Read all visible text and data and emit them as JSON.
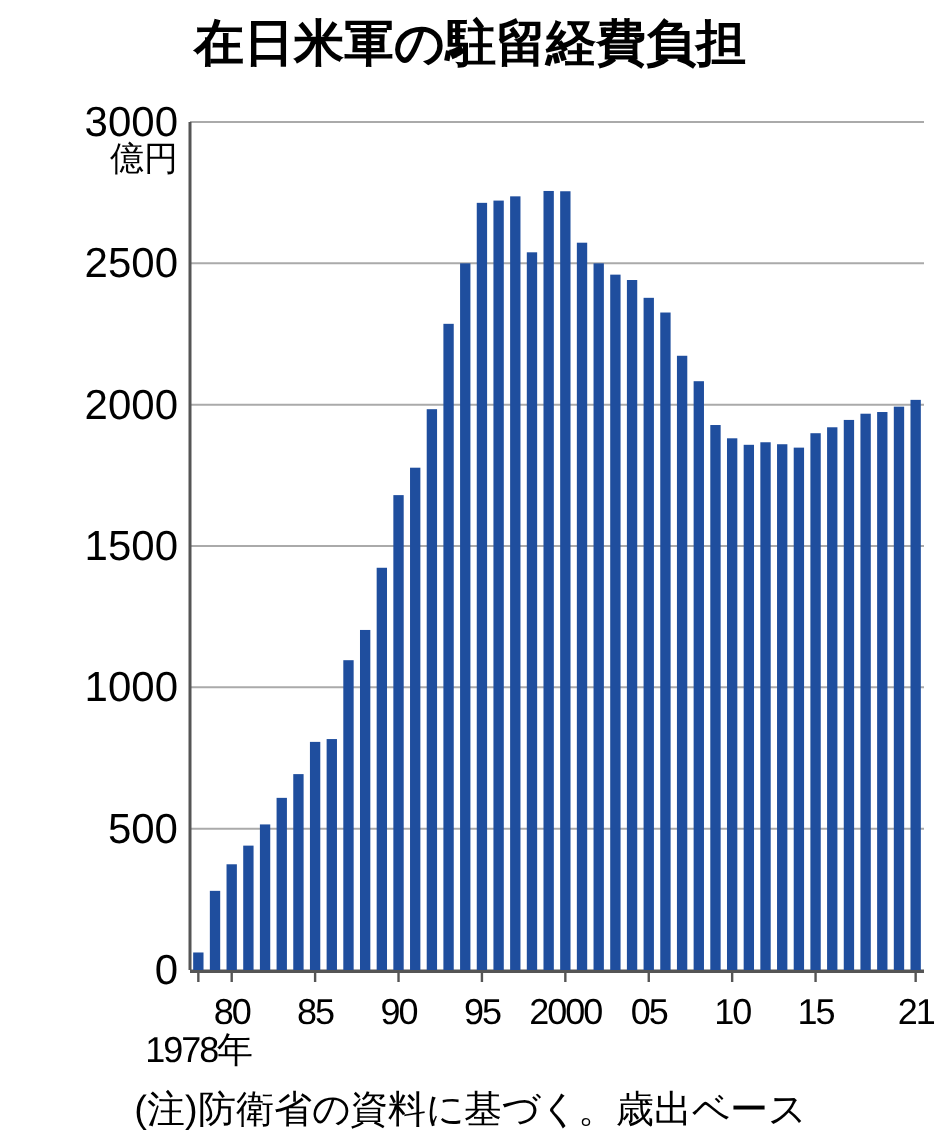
{
  "chart_data": {
    "type": "bar",
    "title": "在日米軍の駐留経費負担",
    "ylabel": "億円",
    "categories": [
      "1978年",
      null,
      "80",
      null,
      null,
      null,
      null,
      "85",
      null,
      null,
      null,
      null,
      "90",
      null,
      null,
      null,
      null,
      "95",
      null,
      null,
      null,
      null,
      "2000",
      null,
      null,
      null,
      null,
      "05",
      null,
      null,
      null,
      null,
      "10",
      null,
      null,
      null,
      null,
      "15",
      null,
      null,
      null,
      null,
      null,
      "21"
    ],
    "values": [
      62,
      280,
      374,
      440,
      515,
      609,
      693,
      807,
      817,
      1096,
      1203,
      1423,
      1680,
      1777,
      1984,
      2286,
      2500,
      2714,
      2722,
      2737,
      2539,
      2756,
      2755,
      2573,
      2500,
      2460,
      2441,
      2378,
      2326,
      2173,
      2083,
      1928,
      1881,
      1858,
      1867,
      1860,
      1848,
      1899,
      1920,
      1946,
      1968,
      1974,
      1993,
      2017
    ],
    "color": "#1f4e9e",
    "ylim": [
      0,
      3000
    ],
    "yticks": [
      0,
      500,
      1000,
      1500,
      2000,
      2500,
      3000
    ],
    "grid": "y",
    "annotations": [
      "(注)防衛省の資料に基づく。歳出ベース"
    ]
  }
}
